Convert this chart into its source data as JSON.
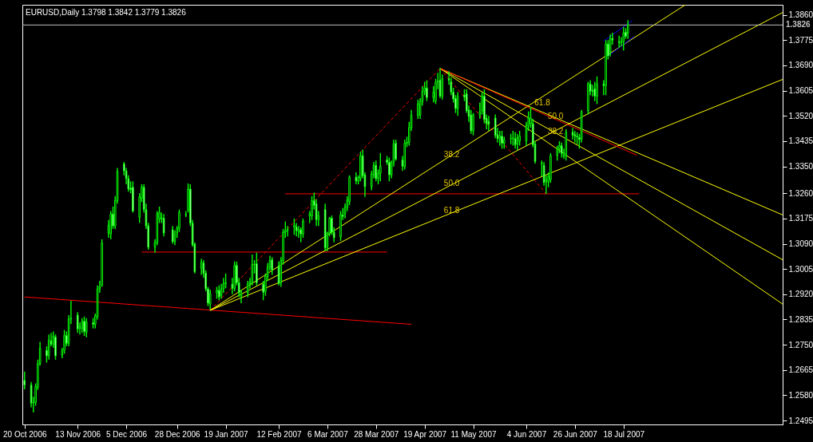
{
  "chart_data": {
    "type": "candlestick",
    "title": "EURUSD,Daily  1.3798 1.3842 1.3779 1.3826",
    "color": "#00ff00",
    "x": [
      "2006-10-20",
      "2006-10-23",
      "2006-10-24",
      "2006-10-25",
      "2006-10-26",
      "2006-10-27",
      "2006-10-30",
      "2006-10-31",
      "2006-11-01",
      "2006-11-02",
      "2006-11-03",
      "2006-11-06",
      "2006-11-07",
      "2006-11-08",
      "2006-11-09",
      "2006-11-10",
      "2006-11-13",
      "2006-11-14",
      "2006-11-15",
      "2006-11-16",
      "2006-11-17",
      "2006-11-20",
      "2006-11-21",
      "2006-11-22",
      "2006-11-23",
      "2006-11-24",
      "2006-11-27",
      "2006-11-28",
      "2006-11-29",
      "2006-11-30",
      "2006-12-01",
      "2006-12-04",
      "2006-12-05",
      "2006-12-06",
      "2006-12-07",
      "2006-12-08",
      "2006-12-11",
      "2006-12-12",
      "2006-12-13",
      "2006-12-14",
      "2006-12-15",
      "2006-12-18",
      "2006-12-19",
      "2006-12-20",
      "2006-12-21",
      "2006-12-22",
      "2006-12-26",
      "2006-12-27",
      "2006-12-28",
      "2006-12-29",
      "2007-01-01",
      "2007-01-02",
      "2007-01-03",
      "2007-01-04",
      "2007-01-05",
      "2007-01-08",
      "2007-01-09",
      "2007-01-10",
      "2007-01-11",
      "2007-01-12",
      "2007-01-15",
      "2007-01-16",
      "2007-01-17",
      "2007-01-18",
      "2007-01-19",
      "2007-01-22",
      "2007-01-23",
      "2007-01-24",
      "2007-01-25",
      "2007-01-26",
      "2007-01-29",
      "2007-01-30",
      "2007-01-31",
      "2007-02-01",
      "2007-02-02",
      "2007-02-05",
      "2007-02-06",
      "2007-02-07",
      "2007-02-08",
      "2007-02-09",
      "2007-02-12",
      "2007-02-13",
      "2007-02-14",
      "2007-02-15",
      "2007-02-16",
      "2007-02-19",
      "2007-02-20",
      "2007-02-21",
      "2007-02-22",
      "2007-02-23",
      "2007-02-26",
      "2007-02-27",
      "2007-02-28",
      "2007-03-01",
      "2007-03-02",
      "2007-03-05",
      "2007-03-06",
      "2007-03-07",
      "2007-03-08",
      "2007-03-09",
      "2007-03-12",
      "2007-03-13",
      "2007-03-14",
      "2007-03-15",
      "2007-03-16",
      "2007-03-19",
      "2007-03-20",
      "2007-03-21",
      "2007-03-22",
      "2007-03-23",
      "2007-03-26",
      "2007-03-27",
      "2007-03-28",
      "2007-03-29",
      "2007-03-30",
      "2007-04-02",
      "2007-04-03",
      "2007-04-04",
      "2007-04-05",
      "2007-04-06",
      "2007-04-09",
      "2007-04-10",
      "2007-04-11",
      "2007-04-12",
      "2007-04-13",
      "2007-04-16",
      "2007-04-17",
      "2007-04-18",
      "2007-04-19",
      "2007-04-20",
      "2007-04-23",
      "2007-04-24",
      "2007-04-25",
      "2007-04-26",
      "2007-04-27",
      "2007-04-30",
      "2007-05-01",
      "2007-05-02",
      "2007-05-03",
      "2007-05-04",
      "2007-05-07",
      "2007-05-08",
      "2007-05-09",
      "2007-05-10",
      "2007-05-11",
      "2007-05-14",
      "2007-05-15",
      "2007-05-16",
      "2007-05-17",
      "2007-05-18",
      "2007-05-21",
      "2007-05-22",
      "2007-05-23",
      "2007-05-24",
      "2007-05-25",
      "2007-05-28",
      "2007-05-29",
      "2007-05-30",
      "2007-05-31",
      "2007-06-01",
      "2007-06-04",
      "2007-06-05",
      "2007-06-06",
      "2007-06-07",
      "2007-06-08",
      "2007-06-11",
      "2007-06-12",
      "2007-06-13",
      "2007-06-14",
      "2007-06-15",
      "2007-06-18",
      "2007-06-19",
      "2007-06-20",
      "2007-06-21",
      "2007-06-22",
      "2007-06-25",
      "2007-06-26",
      "2007-06-27",
      "2007-06-28",
      "2007-06-29",
      "2007-07-02",
      "2007-07-03",
      "2007-07-04",
      "2007-07-05",
      "2007-07-06",
      "2007-07-09",
      "2007-07-10",
      "2007-07-11",
      "2007-07-12",
      "2007-07-13",
      "2007-07-16",
      "2007-07-17",
      "2007-07-18",
      "2007-07-19",
      "2007-07-20"
    ],
    "ohlc": [
      [
        1.263,
        1.266,
        1.26,
        1.2615
      ],
      [
        1.2615,
        1.2625,
        1.254,
        1.2554
      ],
      [
        1.2554,
        1.2575,
        1.2522,
        1.2556
      ],
      [
        1.2556,
        1.262,
        1.2545,
        1.2609
      ],
      [
        1.2607,
        1.27,
        1.2598,
        1.2686
      ],
      [
        1.2686,
        1.276,
        1.268,
        1.2739
      ],
      [
        1.2731,
        1.2745,
        1.269,
        1.2713
      ],
      [
        1.2713,
        1.2785,
        1.27,
        1.2766
      ],
      [
        1.2763,
        1.279,
        1.2745,
        1.2752
      ],
      [
        1.2752,
        1.2795,
        1.274,
        1.2779
      ],
      [
        1.2776,
        1.2785,
        1.27,
        1.2713
      ],
      [
        1.2715,
        1.274,
        1.2705,
        1.2731
      ],
      [
        1.2731,
        1.28,
        1.272,
        1.2781
      ],
      [
        1.2781,
        1.2795,
        1.2745,
        1.2755
      ],
      [
        1.2755,
        1.285,
        1.2745,
        1.2837
      ],
      [
        1.2837,
        1.2898,
        1.282,
        1.284
      ],
      [
        1.285,
        1.286,
        1.279,
        1.2803
      ],
      [
        1.2805,
        1.2825,
        1.2785,
        1.2811
      ],
      [
        1.2805,
        1.284,
        1.279,
        1.2829
      ],
      [
        1.2829,
        1.2845,
        1.278,
        1.2795
      ],
      [
        1.2792,
        1.284,
        1.2775,
        1.2827
      ],
      [
        1.2824,
        1.284,
        1.2805,
        1.2819
      ],
      [
        1.2819,
        1.2855,
        1.2805,
        1.2848
      ],
      [
        1.2845,
        1.295,
        1.2835,
        1.2938
      ],
      [
        1.2938,
        1.2965,
        1.2925,
        1.2946
      ],
      [
        1.2951,
        1.3105,
        1.2945,
        1.3092
      ],
      [
        1.3126,
        1.317,
        1.311,
        1.3152
      ],
      [
        1.3123,
        1.32,
        1.3105,
        1.319
      ],
      [
        1.319,
        1.3215,
        1.314,
        1.315
      ],
      [
        1.315,
        1.325,
        1.314,
        1.3235
      ],
      [
        1.3235,
        1.3345,
        1.3225,
        1.3333
      ],
      [
        1.3359,
        1.3365,
        1.332,
        1.3335
      ],
      [
        1.3335,
        1.3345,
        1.329,
        1.3309
      ],
      [
        1.3309,
        1.332,
        1.3265,
        1.3274
      ],
      [
        1.3277,
        1.33,
        1.326,
        1.3272
      ],
      [
        1.328,
        1.33,
        1.3195,
        1.32
      ],
      [
        1.3179,
        1.326,
        1.316,
        1.3248
      ],
      [
        1.3243,
        1.329,
        1.323,
        1.328
      ],
      [
        1.328,
        1.329,
        1.3195,
        1.3205
      ],
      [
        1.3205,
        1.3225,
        1.314,
        1.315
      ],
      [
        1.315,
        1.316,
        1.307,
        1.3078
      ],
      [
        1.3078,
        1.3105,
        1.306,
        1.3094
      ],
      [
        1.3094,
        1.32,
        1.3085,
        1.3192
      ],
      [
        1.3174,
        1.3215,
        1.316,
        1.3195
      ],
      [
        1.3176,
        1.3195,
        1.316,
        1.3174
      ],
      [
        1.3176,
        1.319,
        1.3115,
        1.3126
      ],
      [
        1.3137,
        1.315,
        1.309,
        1.3097
      ],
      [
        1.3097,
        1.3135,
        1.3085,
        1.3123
      ],
      [
        1.3126,
        1.315,
        1.311,
        1.3142
      ],
      [
        1.3142,
        1.3205,
        1.313,
        1.3195
      ],
      [
        1.3187,
        1.32,
        1.318,
        1.3189
      ],
      [
        1.3203,
        1.3293,
        1.3195,
        1.3274
      ],
      [
        1.3274,
        1.329,
        1.315,
        1.316
      ],
      [
        1.316,
        1.317,
        1.308,
        1.3086
      ],
      [
        1.3089,
        1.3095,
        1.299,
        1.2996
      ],
      [
        1.3007,
        1.304,
        1.2985,
        1.3028
      ],
      [
        1.3025,
        1.3035,
        1.2975,
        1.2991
      ],
      [
        1.2991,
        1.3,
        1.293,
        1.2938
      ],
      [
        1.2938,
        1.2945,
        1.288,
        1.289
      ],
      [
        1.2887,
        1.2935,
        1.2868,
        1.2922
      ],
      [
        1.2925,
        1.2945,
        1.2905,
        1.2933
      ],
      [
        1.2933,
        1.295,
        1.29,
        1.2911
      ],
      [
        1.2917,
        1.2955,
        1.2905,
        1.2938
      ],
      [
        1.2938,
        1.2975,
        1.2925,
        1.2956
      ],
      [
        1.2956,
        1.299,
        1.294,
        1.2959
      ],
      [
        1.2954,
        1.2975,
        1.292,
        1.294
      ],
      [
        1.294,
        1.303,
        1.293,
        1.3017
      ],
      [
        1.3017,
        1.303,
        1.295,
        1.2959
      ],
      [
        1.2959,
        1.2975,
        1.291,
        1.2925
      ],
      [
        1.2914,
        1.2935,
        1.289,
        1.2925
      ],
      [
        1.2925,
        1.2965,
        1.291,
        1.2956
      ],
      [
        1.2956,
        1.2975,
        1.294,
        1.2962
      ],
      [
        1.2959,
        1.3054,
        1.295,
        1.302
      ],
      [
        1.302,
        1.3035,
        1.299,
        1.302
      ],
      [
        1.3023,
        1.306,
        1.295,
        1.2959
      ],
      [
        1.2954,
        1.2965,
        1.29,
        1.2927
      ],
      [
        1.293,
        1.299,
        1.2915,
        1.298
      ],
      [
        1.298,
        1.3025,
        1.2965,
        1.3012
      ],
      [
        1.3012,
        1.305,
        1.3,
        1.3033
      ],
      [
        1.3036,
        1.3045,
        1.2985,
        1.3002
      ],
      [
        1.3015,
        1.303,
        1.295,
        1.2956
      ],
      [
        1.2959,
        1.3045,
        1.2945,
        1.3033
      ],
      [
        1.3033,
        1.314,
        1.302,
        1.3129
      ],
      [
        1.3129,
        1.3165,
        1.311,
        1.3134
      ],
      [
        1.3134,
        1.315,
        1.3115,
        1.3139
      ],
      [
        1.3147,
        1.3175,
        1.312,
        1.3152
      ],
      [
        1.3147,
        1.316,
        1.3115,
        1.3134
      ],
      [
        1.3131,
        1.315,
        1.311,
        1.3139
      ],
      [
        1.3137,
        1.3145,
        1.3095,
        1.3123
      ],
      [
        1.3123,
        1.3175,
        1.311,
        1.3166
      ],
      [
        1.3184,
        1.32,
        1.316,
        1.319
      ],
      [
        1.3184,
        1.325,
        1.317,
        1.3235
      ],
      [
        1.3235,
        1.3262,
        1.3205,
        1.3219
      ],
      [
        1.3224,
        1.324,
        1.315,
        1.3171
      ],
      [
        1.3171,
        1.32,
        1.315,
        1.3184
      ],
      [
        1.3205,
        1.3225,
        1.3065,
        1.3076
      ],
      [
        1.3078,
        1.313,
        1.3065,
        1.3126
      ],
      [
        1.3126,
        1.318,
        1.3115,
        1.3176
      ],
      [
        1.3176,
        1.3185,
        1.312,
        1.3129
      ],
      [
        1.3129,
        1.3145,
        1.3095,
        1.311
      ],
      [
        1.3113,
        1.32,
        1.31,
        1.3187
      ],
      [
        1.3187,
        1.321,
        1.317,
        1.3182
      ],
      [
        1.319,
        1.3225,
        1.3175,
        1.3213
      ],
      [
        1.3213,
        1.325,
        1.32,
        1.3237
      ],
      [
        1.3232,
        1.332,
        1.322,
        1.3314
      ],
      [
        1.3314,
        1.333,
        1.329,
        1.3301
      ],
      [
        1.3301,
        1.332,
        1.329,
        1.3314
      ],
      [
        1.3311,
        1.34,
        1.33,
        1.3386
      ],
      [
        1.3386,
        1.3407,
        1.331,
        1.3319
      ],
      [
        1.3322,
        1.333,
        1.3248,
        1.3282
      ],
      [
        1.3282,
        1.3335,
        1.327,
        1.3325
      ],
      [
        1.3322,
        1.3365,
        1.331,
        1.3354
      ],
      [
        1.3354,
        1.337,
        1.33,
        1.3309
      ],
      [
        1.3309,
        1.334,
        1.329,
        1.3327
      ],
      [
        1.3327,
        1.3395,
        1.33,
        1.3351
      ],
      [
        1.3372,
        1.3385,
        1.3355,
        1.3364
      ],
      [
        1.3364,
        1.338,
        1.33,
        1.3322
      ],
      [
        1.3322,
        1.337,
        1.331,
        1.3364
      ],
      [
        1.3364,
        1.344,
        1.335,
        1.3425
      ],
      [
        1.3428,
        1.344,
        1.337,
        1.3375
      ],
      [
        1.3372,
        1.3385,
        1.3335,
        1.3351
      ],
      [
        1.3349,
        1.344,
        1.334,
        1.3428
      ],
      [
        1.3428,
        1.345,
        1.3415,
        1.3431
      ],
      [
        1.3431,
        1.35,
        1.342,
        1.3481
      ],
      [
        1.3481,
        1.354,
        1.347,
        1.3523
      ],
      [
        1.3521,
        1.3575,
        1.351,
        1.3561
      ],
      [
        1.3523,
        1.358,
        1.351,
        1.3569
      ],
      [
        1.3569,
        1.362,
        1.3555,
        1.3603
      ],
      [
        1.3603,
        1.3635,
        1.359,
        1.3614
      ],
      [
        1.3614,
        1.364,
        1.357,
        1.3582
      ],
      [
        1.3582,
        1.362,
        1.3565,
        1.36
      ],
      [
        1.3571,
        1.3645,
        1.356,
        1.3632
      ],
      [
        1.3637,
        1.3665,
        1.361,
        1.3635
      ],
      [
        1.364,
        1.3682,
        1.358,
        1.3587
      ],
      [
        1.3587,
        1.366,
        1.3575,
        1.3645
      ],
      [
        1.3645,
        1.367,
        1.3625,
        1.364
      ],
      [
        1.3635,
        1.365,
        1.359,
        1.36
      ],
      [
        1.36,
        1.3615,
        1.3565,
        1.3577
      ],
      [
        1.3579,
        1.359,
        1.353,
        1.3545
      ],
      [
        1.3545,
        1.36,
        1.352,
        1.3587
      ],
      [
        1.359,
        1.361,
        1.357,
        1.3584
      ],
      [
        1.3595,
        1.361,
        1.353,
        1.3537
      ],
      [
        1.354,
        1.3555,
        1.35,
        1.3518
      ],
      [
        1.3523,
        1.354,
        1.346,
        1.347
      ],
      [
        1.347,
        1.353,
        1.3455,
        1.3523
      ],
      [
        1.3523,
        1.3565,
        1.351,
        1.3534
      ],
      [
        1.3537,
        1.36,
        1.3525,
        1.3587
      ],
      [
        1.3587,
        1.361,
        1.3495,
        1.3508
      ],
      [
        1.3513,
        1.3525,
        1.3475,
        1.3494
      ],
      [
        1.3502,
        1.352,
        1.347,
        1.3492
      ],
      [
        1.3513,
        1.3525,
        1.3445,
        1.3455
      ],
      [
        1.3457,
        1.348,
        1.343,
        1.3444
      ],
      [
        1.3444,
        1.347,
        1.342,
        1.3452
      ],
      [
        1.3452,
        1.347,
        1.341,
        1.3428
      ],
      [
        1.3428,
        1.345,
        1.341,
        1.3439
      ],
      [
        1.3444,
        1.346,
        1.3425,
        1.3444
      ],
      [
        1.3444,
        1.347,
        1.342,
        1.3446
      ],
      [
        1.3444,
        1.3465,
        1.341,
        1.3423
      ],
      [
        1.3425,
        1.346,
        1.3405,
        1.3447
      ],
      [
        1.3436,
        1.347,
        1.342,
        1.3452
      ],
      [
        1.3436,
        1.35,
        1.342,
        1.3489
      ],
      [
        1.3486,
        1.3535,
        1.347,
        1.3513
      ],
      [
        1.3494,
        1.355,
        1.348,
        1.3513
      ],
      [
        1.3494,
        1.351,
        1.3415,
        1.3423
      ],
      [
        1.3425,
        1.3435,
        1.336,
        1.3367
      ],
      [
        1.3359,
        1.337,
        1.3317,
        1.3362
      ],
      [
        1.3354,
        1.3365,
        1.3285,
        1.3296
      ],
      [
        1.3298,
        1.332,
        1.3258,
        1.3306
      ],
      [
        1.3298,
        1.333,
        1.328,
        1.3317
      ],
      [
        1.3306,
        1.3395,
        1.3295,
        1.3386
      ],
      [
        1.3386,
        1.342,
        1.337,
        1.341
      ],
      [
        1.341,
        1.3435,
        1.3395,
        1.342
      ],
      [
        1.342,
        1.343,
        1.338,
        1.3394
      ],
      [
        1.3383,
        1.341,
        1.3375,
        1.3396
      ],
      [
        1.3385,
        1.3475,
        1.337,
        1.3465
      ],
      [
        1.3465,
        1.348,
        1.344,
        1.3455
      ],
      [
        1.3457,
        1.347,
        1.343,
        1.3452
      ],
      [
        1.3452,
        1.3465,
        1.3425,
        1.3449
      ],
      [
        1.3447,
        1.346,
        1.341,
        1.3441
      ],
      [
        1.3441,
        1.354,
        1.343,
        1.3534
      ],
      [
        1.3537,
        1.3635,
        1.3525,
        1.3629
      ],
      [
        1.3627,
        1.364,
        1.359,
        1.3603
      ],
      [
        1.3606,
        1.3625,
        1.3585,
        1.3603
      ],
      [
        1.3611,
        1.3635,
        1.357,
        1.3587
      ],
      [
        1.3587,
        1.3653,
        1.356,
        1.3627
      ],
      [
        1.3627,
        1.364,
        1.359,
        1.3622
      ],
      [
        1.3622,
        1.3775,
        1.359,
        1.3762
      ],
      [
        1.3762,
        1.3775,
        1.371,
        1.3722
      ],
      [
        1.3735,
        1.3795,
        1.372,
        1.3781
      ],
      [
        1.3781,
        1.38,
        1.376,
        1.3775
      ],
      [
        1.377,
        1.379,
        1.375,
        1.3767
      ],
      [
        1.3767,
        1.3785,
        1.3755,
        1.377
      ],
      [
        1.377,
        1.382,
        1.374,
        1.3799
      ],
      [
        1.3802,
        1.3815,
        1.378,
        1.3788
      ],
      [
        1.3798,
        1.3842,
        1.3779,
        1.3826
      ]
    ],
    "series": [
      {
        "type": "line",
        "color": "#ff0000",
        "x": [
          "2006-10-20",
          "2007-04-13"
        ],
        "values": [
          1.2911,
          1.2819
        ]
      },
      {
        "type": "line",
        "color": "#ff0000",
        "x": [
          "2006-12-12",
          "2007-04-02"
        ],
        "values": [
          1.3062,
          1.3062
        ]
      },
      {
        "type": "line",
        "color": "#ff0000",
        "x": [
          "2007-02-15",
          "2007-07-25"
        ],
        "values": [
          1.3258,
          1.3258
        ]
      },
      {
        "type": "line",
        "color": "#ff0000",
        "line_style": "dashed",
        "x": [
          "2007-01-12",
          "2007-04-26"
        ],
        "values": [
          1.2866,
          1.368
        ]
      },
      {
        "type": "line",
        "color": "#ff0000",
        "line_style": "dashed",
        "x": [
          "2007-04-26",
          "2007-06-13"
        ],
        "values": [
          1.368,
          1.3258
        ]
      },
      {
        "type": "line",
        "color": "#ffff00",
        "x": [
          "2007-01-12",
          "2007-08-15"
        ],
        "values": [
          1.2866,
          1.3894
        ]
      },
      {
        "type": "line",
        "color": "#ffff00",
        "x": [
          "2007-01-12",
          "2007-09-28"
        ],
        "values": [
          1.2866,
          1.3868
        ]
      },
      {
        "type": "line",
        "color": "#ffff00",
        "x": [
          "2007-01-12",
          "2007-09-28"
        ],
        "values": [
          1.2866,
          1.3643
        ]
      },
      {
        "type": "line",
        "color": "#ffff00",
        "x": [
          "2007-04-26",
          "2007-09-28"
        ],
        "values": [
          1.368,
          1.3187
        ]
      },
      {
        "type": "line",
        "color": "#ffff00",
        "x": [
          "2007-04-26",
          "2007-09-28"
        ],
        "values": [
          1.368,
          1.3036
        ]
      },
      {
        "type": "line",
        "color": "#ffff00",
        "x": [
          "2007-04-26",
          "2007-09-28"
        ],
        "values": [
          1.368,
          1.2887
        ]
      },
      {
        "type": "line",
        "color": "#ff0000",
        "x": [
          "2007-04-26",
          "2007-07-24"
        ],
        "values": [
          1.368,
          1.3388
        ]
      },
      {
        "type": "line",
        "color": "#0000ff",
        "x": [
          "2007-07-09",
          "2007-07-22"
        ],
        "values": [
          1.3772,
          1.3841
        ]
      },
      {
        "type": "line",
        "color": "#0000ff",
        "x": [
          "2007-07-11",
          "2007-07-23"
        ],
        "values": [
          1.3722,
          1.3788
        ]
      }
    ],
    "ref_lines": [
      {
        "axis": "y",
        "value": 1.3826,
        "label": "1.3826",
        "color": "#c0c0c0"
      }
    ],
    "annotations": [
      {
        "text": "38.2",
        "x": "2007-04-27",
        "y": 1.3368
      },
      {
        "text": "50.0",
        "x": "2007-04-27",
        "y": 1.3272
      },
      {
        "text": "61.8",
        "x": "2007-04-27",
        "y": 1.3181
      },
      {
        "text": "61.8",
        "x": "2007-06-07",
        "y": 1.3542
      },
      {
        "text": "50.0",
        "x": "2007-06-13",
        "y": 1.3497
      },
      {
        "text": "38.2",
        "x": "2007-06-13",
        "y": 1.3447
      }
    ],
    "xlim": [
      "2006-10-19",
      "2007-09-28"
    ],
    "xticks": [
      {
        "value": "2006-10-20",
        "label": "20 Oct 2006"
      },
      {
        "value": "2006-11-13",
        "label": "13 Nov 2006"
      },
      {
        "value": "2006-12-05",
        "label": "5 Dec 2006"
      },
      {
        "value": "2006-12-28",
        "label": "28 Dec 2006"
      },
      {
        "value": "2007-01-19",
        "label": "19 Jan 2007"
      },
      {
        "value": "2007-02-12",
        "label": "12 Feb 2007"
      },
      {
        "value": "2007-03-06",
        "label": "6 Mar 2007"
      },
      {
        "value": "2007-03-28",
        "label": "28 Mar 2007"
      },
      {
        "value": "2007-04-19",
        "label": "19 Apr 2007"
      },
      {
        "value": "2007-05-11",
        "label": "11 May 2007"
      },
      {
        "value": "2007-06-04",
        "label": "4 Jun 2007"
      },
      {
        "value": "2007-06-26",
        "label": "26 Jun 2007"
      },
      {
        "value": "2007-07-18",
        "label": "18 Jul 2007"
      }
    ],
    "ylim": [
      1.2482,
      1.3894
    ],
    "yticks": [
      {
        "value": 1.2495,
        "label": "1.2495"
      },
      {
        "value": 1.258,
        "label": "1.2580"
      },
      {
        "value": 1.2665,
        "label": "1.2665"
      },
      {
        "value": 1.275,
        "label": "1.2750"
      },
      {
        "value": 1.2835,
        "label": "1.2835"
      },
      {
        "value": 1.292,
        "label": "1.2920"
      },
      {
        "value": 1.3005,
        "label": "1.3005"
      },
      {
        "value": 1.309,
        "label": "1.3090"
      },
      {
        "value": 1.3175,
        "label": "1.3175"
      },
      {
        "value": 1.326,
        "label": "1.3260"
      },
      {
        "value": 1.335,
        "label": "1.3350"
      },
      {
        "value": 1.3435,
        "label": "1.3435"
      },
      {
        "value": 1.352,
        "label": "1.3520"
      },
      {
        "value": 1.3605,
        "label": "1.3605"
      },
      {
        "value": 1.369,
        "label": "1.3690"
      },
      {
        "value": 1.3775,
        "label": "1.3775"
      },
      {
        "value": 1.386,
        "label": "1.3860"
      }
    ],
    "grid": false
  }
}
